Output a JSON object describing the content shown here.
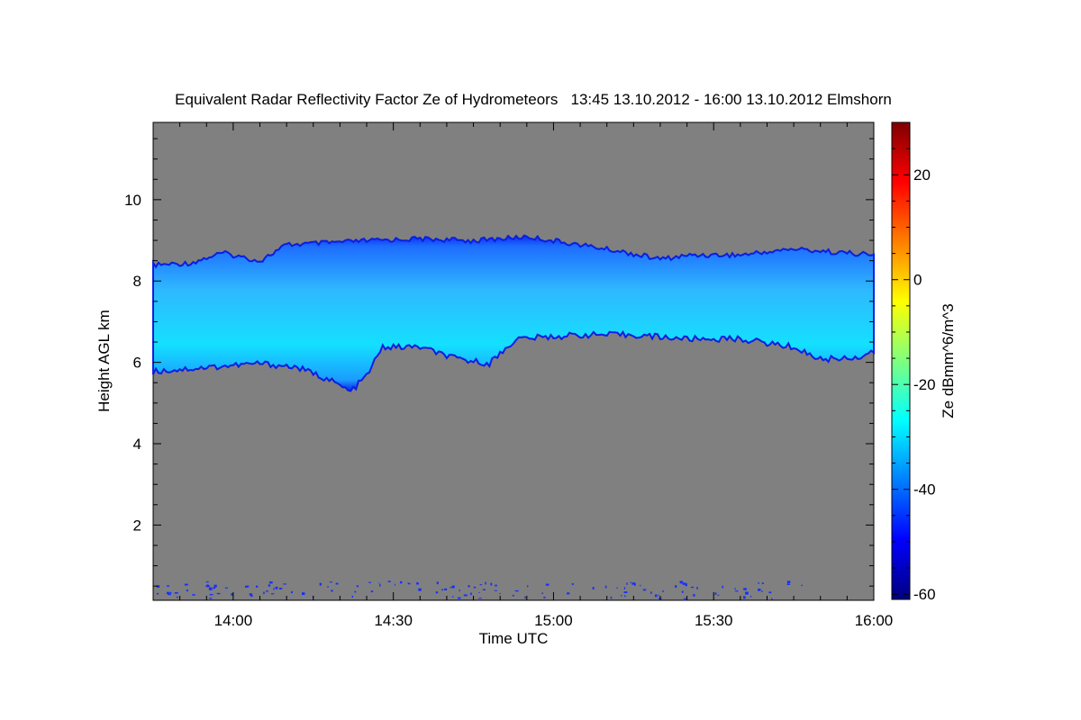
{
  "chart_data": {
    "type": "heatmap",
    "title": "Equivalent Radar Reflectivity Factor Ze of Hydrometeors   13:45 13.10.2012 - 16:00 13.10.2012 Elmshorn",
    "xlabel": "Time UTC",
    "ylabel": "Height AGL km",
    "colorbar_label": "Ze dBmm^6/m^3",
    "x_start": "13:45",
    "x_end": "16:00",
    "x_ticks": [
      "14:00",
      "14:30",
      "15:00",
      "15:30",
      "16:00"
    ],
    "y_ticks": [
      "2",
      "4",
      "6",
      "8",
      "10"
    ],
    "y_range_km": [
      0.15,
      11.9
    ],
    "colorbar_ticks": [
      "20",
      "0",
      "-20",
      "-40",
      "-60"
    ],
    "colorbar_range_dbz": [
      -61,
      30
    ],
    "background_color": "#808080",
    "colormap": [
      "#00007f",
      "#0000ff",
      "#007fff",
      "#00ffff",
      "#7fff7f",
      "#ffff00",
      "#ff7f00",
      "#ff0000",
      "#7f0000"
    ],
    "cloud_top_km": [
      [
        "13:45",
        8.45
      ],
      [
        "13:52",
        8.5
      ],
      [
        "13:58",
        8.75
      ],
      [
        "14:05",
        8.55
      ],
      [
        "14:10",
        8.95
      ],
      [
        "14:18",
        9.0
      ],
      [
        "14:25",
        9.05
      ],
      [
        "14:35",
        9.1
      ],
      [
        "14:45",
        9.05
      ],
      [
        "14:55",
        9.15
      ],
      [
        "15:05",
        8.95
      ],
      [
        "15:12",
        8.8
      ],
      [
        "15:20",
        8.6
      ],
      [
        "15:26",
        8.7
      ],
      [
        "15:35",
        8.7
      ],
      [
        "15:45",
        8.85
      ],
      [
        "15:55",
        8.75
      ],
      [
        "16:00",
        8.7
      ]
    ],
    "cloud_base_km": [
      [
        "13:45",
        5.7
      ],
      [
        "13:55",
        5.8
      ],
      [
        "14:05",
        5.9
      ],
      [
        "14:12",
        5.8
      ],
      [
        "14:18",
        5.5
      ],
      [
        "14:22",
        5.2
      ],
      [
        "14:25",
        5.6
      ],
      [
        "14:28",
        6.3
      ],
      [
        "14:35",
        6.3
      ],
      [
        "14:42",
        6.0
      ],
      [
        "14:48",
        5.9
      ],
      [
        "14:53",
        6.5
      ],
      [
        "15:05",
        6.6
      ],
      [
        "15:15",
        6.6
      ],
      [
        "15:25",
        6.5
      ],
      [
        "15:35",
        6.5
      ],
      [
        "15:45",
        6.3
      ],
      [
        "15:50",
        6.0
      ],
      [
        "15:57",
        6.05
      ],
      [
        "16:00",
        6.2
      ]
    ],
    "cloud_typical_ze_dbz": -33
  }
}
